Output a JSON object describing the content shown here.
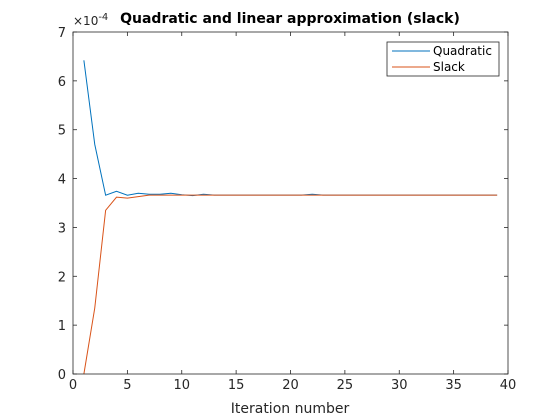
{
  "chart_data": {
    "type": "line",
    "title": "Quadratic and linear approximation (slack)",
    "xlabel": "Iteration number",
    "ylabel": "",
    "y_multiplier_label": "×10",
    "y_multiplier_exponent": "-4",
    "xlim": [
      0,
      40
    ],
    "ylim": [
      0,
      7
    ],
    "x_ticks": [
      "0",
      "5",
      "10",
      "15",
      "20",
      "25",
      "30",
      "35",
      "40"
    ],
    "y_ticks": [
      "0",
      "1",
      "2",
      "3",
      "4",
      "5",
      "6",
      "7"
    ],
    "grid": false,
    "legend_position": "top-right",
    "x": [
      1,
      2,
      3,
      4,
      5,
      6,
      7,
      8,
      9,
      10,
      11,
      12,
      13,
      14,
      15,
      16,
      17,
      18,
      19,
      20,
      21,
      22,
      23,
      24,
      25,
      26,
      27,
      28,
      29,
      30,
      31,
      32,
      33,
      34,
      35,
      36,
      37,
      38,
      39
    ],
    "series": [
      {
        "name": "Quadratic",
        "color": "#0072BD",
        "values": [
          6.42,
          4.7,
          3.66,
          3.74,
          3.66,
          3.7,
          3.68,
          3.68,
          3.7,
          3.67,
          3.65,
          3.68,
          3.66,
          3.66,
          3.66,
          3.66,
          3.66,
          3.66,
          3.66,
          3.66,
          3.66,
          3.68,
          3.66,
          3.66,
          3.66,
          3.66,
          3.66,
          3.66,
          3.66,
          3.66,
          3.66,
          3.66,
          3.66,
          3.66,
          3.66,
          3.66,
          3.66,
          3.66,
          3.66
        ]
      },
      {
        "name": "Slack",
        "color": "#D95319",
        "values": [
          0.0,
          1.35,
          3.35,
          3.62,
          3.6,
          3.63,
          3.66,
          3.66,
          3.66,
          3.66,
          3.66,
          3.66,
          3.66,
          3.66,
          3.66,
          3.66,
          3.66,
          3.66,
          3.66,
          3.66,
          3.66,
          3.66,
          3.66,
          3.66,
          3.66,
          3.66,
          3.66,
          3.66,
          3.66,
          3.66,
          3.66,
          3.66,
          3.66,
          3.66,
          3.66,
          3.66,
          3.66,
          3.66,
          3.66
        ]
      }
    ]
  }
}
